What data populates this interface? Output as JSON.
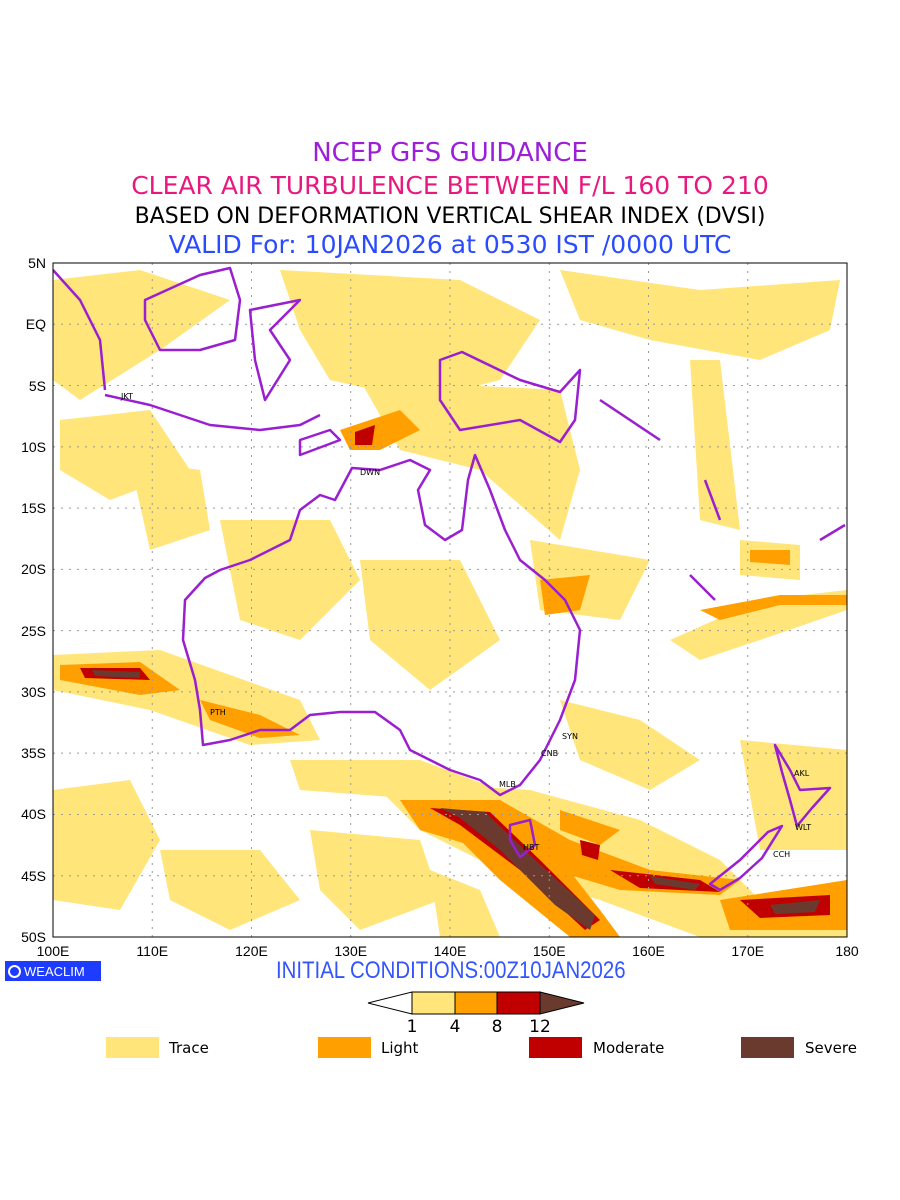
{
  "titles": {
    "line1": "NCEP GFS GUIDANCE",
    "line2": "CLEAR AIR TURBULENCE BETWEEN F/L 160 TO 210",
    "line3": "BASED ON DEFORMATION VERTICAL SHEAR INDEX (DVSI)",
    "line4": "VALID For: 10JAN2026 at 0530 IST /0000 UTC"
  },
  "axes": {
    "lat_labels": [
      "5N",
      "EQ",
      "5S",
      "10S",
      "15S",
      "20S",
      "25S",
      "30S",
      "35S",
      "40S",
      "45S",
      "50S"
    ],
    "lon_labels": [
      "100E",
      "110E",
      "120E",
      "130E",
      "140E",
      "150E",
      "160E",
      "170E",
      "180"
    ]
  },
  "cities": [
    "JKT",
    "DWN",
    "PTH",
    "SYN",
    "CNB",
    "MLB",
    "HBT",
    "AKL",
    "WLT",
    "CCH"
  ],
  "footer": {
    "logo": "WEACLIM",
    "initial_conditions": "INITIAL CONDITIONS:00Z10JAN2026"
  },
  "colorbar": {
    "ticks": [
      "1",
      "4",
      "8",
      "12"
    ],
    "colors": [
      "#ffe57a",
      "#ffa000",
      "#c00000",
      "#6b3a2e"
    ]
  },
  "legend": [
    {
      "label": "Trace",
      "color": "#ffe57a"
    },
    {
      "label": "Light",
      "color": "#ffa000"
    },
    {
      "label": "Moderate",
      "color": "#c00000"
    },
    {
      "label": "Severe",
      "color": "#6b3a2e"
    }
  ],
  "colors": {
    "coast": "#9a1fd0"
  }
}
